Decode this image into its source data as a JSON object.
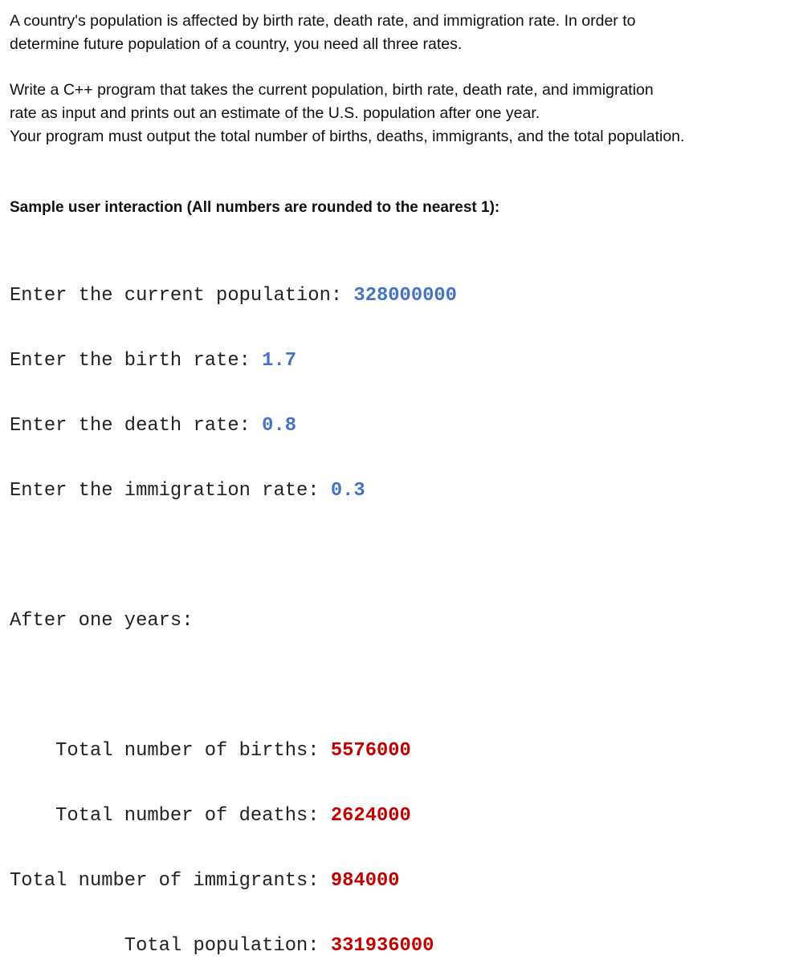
{
  "intro": {
    "lines": [
      "A country's population is affected by birth rate, death rate, and immigration rate. In order to",
      "determine future population of a country, you need all three rates."
    ]
  },
  "task": {
    "lines": [
      "Write a C++ program that takes the current population, birth rate, death rate, and immigration",
      "rate as input and prints out an estimate of the U.S. population after one year.",
      "Your program must output the total number of births, deaths, immigrants, and the total population."
    ]
  },
  "sample_heading": "Sample user interaction (All numbers are rounded to the nearest 1):",
  "console": {
    "inputs": [
      {
        "prompt": "Enter the current population: ",
        "value": "328000000"
      },
      {
        "prompt": "Enter the birth rate: ",
        "value": "1.7"
      },
      {
        "prompt": "Enter the death rate: ",
        "value": "0.8"
      },
      {
        "prompt": "Enter the immigration rate: ",
        "value": "0.3"
      }
    ],
    "after": "After one years:",
    "outputs": [
      {
        "label": "    Total number of births: ",
        "value": "5576000"
      },
      {
        "label": "    Total number of deaths: ",
        "value": "2624000"
      },
      {
        "label": "Total number of immigrants: ",
        "value": "984000"
      },
      {
        "label": "          Total population: ",
        "value": "331936000"
      }
    ]
  },
  "colors": {
    "input": "#4472C4",
    "output": "#C00000"
  }
}
